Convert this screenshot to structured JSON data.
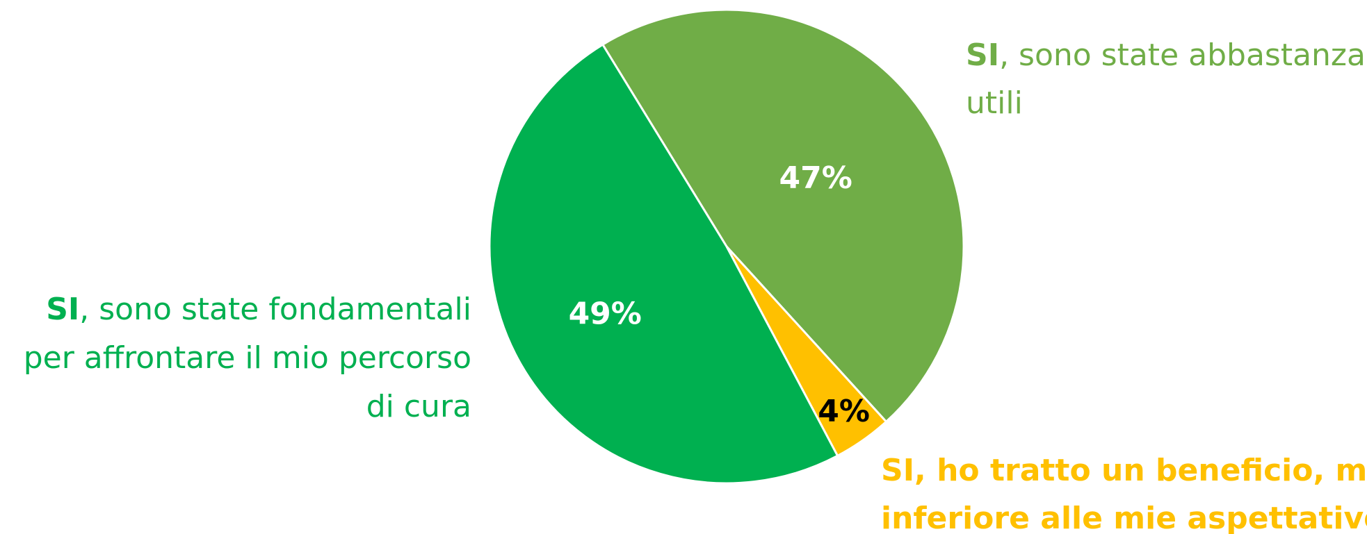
{
  "chart_data": {
    "type": "pie",
    "categories": [
      "SI, sono state abbastanza utili",
      "SI, ho tratto un beneficio, ma inferiore alle mie aspettative",
      "SI, sono state fondamentali per affrontare il mio percorso di cura"
    ],
    "values": [
      47,
      4,
      49
    ],
    "value_labels": [
      "47%",
      "4%",
      "49%"
    ],
    "colors": [
      "#70ad47",
      "#ffc000",
      "#00b050"
    ]
  }
}
